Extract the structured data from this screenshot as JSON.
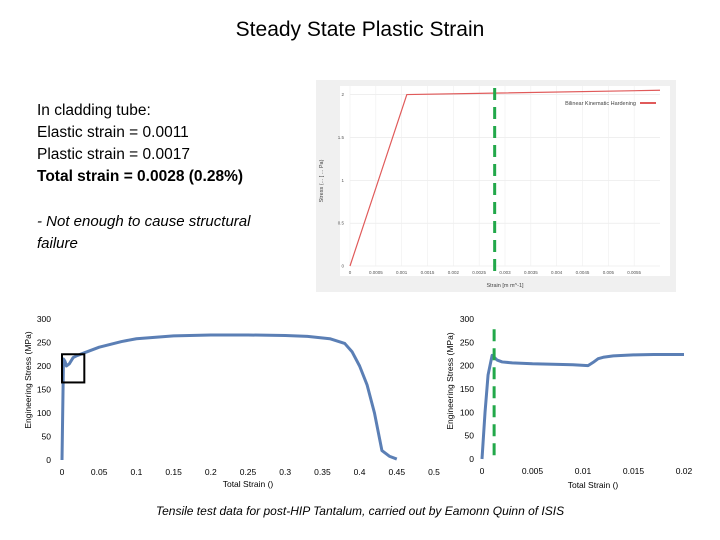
{
  "slide": {
    "title": "Steady State Plastic Strain",
    "info_lines": [
      "In cladding tube:",
      "Elastic strain = 0.0011",
      "Plastic strain = 0.0017"
    ],
    "info_bold_line": "Total strain   = 0.0028 (0.28%)",
    "note": "- Not enough to cause structural failure",
    "caption": "Tensile test data for post-HIP Tantalum, carried out by Eamonn Quinn of ISIS"
  },
  "colors": {
    "curve": "#5b7fb5",
    "marker": "#22a84a",
    "bilinear": "#e05a5a"
  },
  "chart_data": [
    {
      "type": "line",
      "title": "",
      "xlabel": "Strain  [m m^-1]",
      "ylabel": "Stress  (... [ ... Pa)",
      "xlim": [
        0,
        0.006
      ],
      "ylim": [
        0,
        2.1
      ],
      "x_ticks": [
        "0",
        "0.0005",
        "0.001",
        "0.0015",
        "0.002",
        "0.0025",
        "0.003",
        "0.0035",
        "0.004",
        "0.0045",
        "0.005",
        "0.0055"
      ],
      "y_ticks": [
        "0",
        "0.5",
        "1",
        "1.5",
        "2"
      ],
      "legend": [
        "Bilinear Kinematic Hardening"
      ],
      "legend_position": "top-right",
      "grid": true,
      "series": [
        {
          "name": "Bilinear Kinematic Hardening",
          "x": [
            0,
            0.0011,
            0.006
          ],
          "y": [
            0,
            2.0,
            2.05
          ]
        }
      ],
      "marker_x": 0.0028
    },
    {
      "type": "line",
      "xlabel": "Total Strain ()",
      "ylabel": "Engineering Stress (MPa)",
      "xlim": [
        0,
        0.5
      ],
      "ylim": [
        0,
        300
      ],
      "x_ticks": [
        "0",
        "0.05",
        "0.1",
        "0.15",
        "0.2",
        "0.25",
        "0.3",
        "0.35",
        "0.4",
        "0.45",
        "0.5"
      ],
      "y_ticks": [
        "0",
        "50",
        "100",
        "150",
        "200",
        "250",
        "300"
      ],
      "grid": false,
      "series": [
        {
          "x": [
            0,
            0.002,
            0.004,
            0.006,
            0.01,
            0.015,
            0.02,
            0.03,
            0.05,
            0.08,
            0.1,
            0.15,
            0.2,
            0.25,
            0.3,
            0.33,
            0.36,
            0.38,
            0.39,
            0.4,
            0.41,
            0.42,
            0.425,
            0.43,
            0.44,
            0.45
          ],
          "y": [
            0,
            215,
            210,
            200,
            205,
            218,
            222,
            228,
            240,
            252,
            258,
            264,
            266,
            266,
            265,
            263,
            258,
            248,
            230,
            200,
            160,
            100,
            60,
            20,
            8,
            2
          ]
        }
      ],
      "annotation": {
        "type": "box",
        "x_range": [
          0,
          0.03
        ],
        "y_range": [
          165,
          225
        ]
      }
    },
    {
      "type": "line",
      "xlabel": "Total Strain ()",
      "ylabel": "Engineering Stress (MPa)",
      "xlim": [
        0,
        0.02
      ],
      "ylim": [
        0,
        300
      ],
      "x_ticks": [
        "0",
        "0.005",
        "0.01",
        "0.015",
        "0.02"
      ],
      "y_ticks": [
        "0",
        "50",
        "100",
        "150",
        "200",
        "250",
        "300"
      ],
      "grid": false,
      "series": [
        {
          "x": [
            0,
            0.0003,
            0.0006,
            0.001,
            0.0012,
            0.0015,
            0.002,
            0.003,
            0.005,
            0.007,
            0.009,
            0.0105,
            0.011,
            0.0115,
            0.012,
            0.013,
            0.015,
            0.017,
            0.02
          ],
          "y": [
            0,
            100,
            180,
            222,
            218,
            212,
            208,
            206,
            204,
            203,
            202,
            200,
            207,
            215,
            218,
            221,
            223,
            224,
            224
          ]
        }
      ],
      "marker_x": 0.0012
    }
  ]
}
